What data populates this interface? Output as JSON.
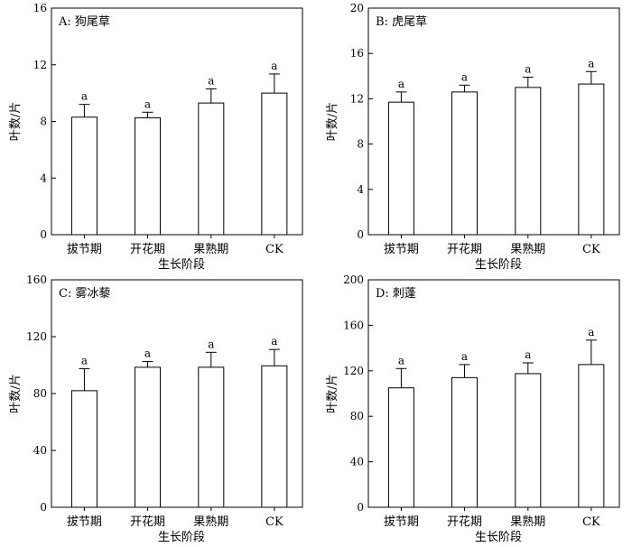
{
  "chart_data": [
    {
      "type": "bar",
      "title": "A: 狗尾草",
      "xlabel": "生长阶段",
      "ylabel": "叶数/片",
      "categories": [
        "拔节期",
        "开花期",
        "果熟期",
        "CK"
      ],
      "values": [
        8.3,
        8.25,
        9.3,
        10.0
      ],
      "errors": [
        0.9,
        0.4,
        1.0,
        1.35
      ],
      "significance": [
        "a",
        "a",
        "a",
        "a"
      ],
      "ylim": [
        0,
        16
      ],
      "yticks": [
        0,
        4,
        8,
        12,
        16
      ]
    },
    {
      "type": "bar",
      "title": "B: 虎尾草",
      "xlabel": "生长阶段",
      "ylabel": "叶数/片",
      "categories": [
        "拔节期",
        "开花期",
        "果熟期",
        "CK"
      ],
      "values": [
        11.7,
        12.6,
        13.0,
        13.3
      ],
      "errors": [
        0.9,
        0.6,
        0.9,
        1.1
      ],
      "significance": [
        "a",
        "a",
        "a",
        "a"
      ],
      "ylim": [
        0,
        20
      ],
      "yticks": [
        0,
        4,
        8,
        12,
        16,
        20
      ]
    },
    {
      "type": "bar",
      "title": "C: 雾冰藜",
      "xlabel": "生长阶段",
      "ylabel": "叶数/片",
      "categories": [
        "拔节期",
        "开花期",
        "果熟期",
        "CK"
      ],
      "values": [
        82,
        98.5,
        98.5,
        99.5
      ],
      "errors": [
        15.5,
        4,
        10.5,
        11.5
      ],
      "significance": [
        "a",
        "a",
        "a",
        "a"
      ],
      "ylim": [
        0,
        160
      ],
      "yticks": [
        0,
        40,
        80,
        120,
        160
      ]
    },
    {
      "type": "bar",
      "title": "D: 刺蓬",
      "xlabel": "生长阶段",
      "ylabel": "叶数/片",
      "categories": [
        "拔节期",
        "开花期",
        "果熟期",
        "CK"
      ],
      "values": [
        105,
        114,
        117.5,
        125.5
      ],
      "errors": [
        17,
        11.5,
        9.5,
        21.5
      ],
      "significance": [
        "a",
        "a",
        "a",
        "a"
      ],
      "ylim": [
        0,
        200
      ],
      "yticks": [
        0,
        40,
        80,
        120,
        160,
        200
      ]
    }
  ]
}
